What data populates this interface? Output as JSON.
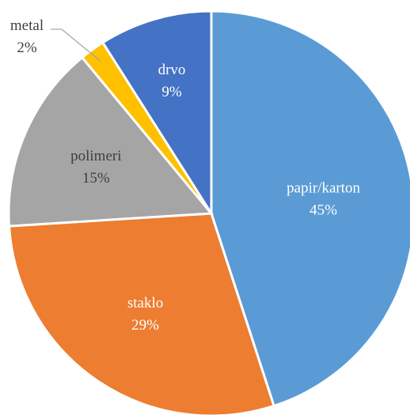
{
  "chart_data": {
    "type": "pie",
    "title": "",
    "slices": [
      {
        "label": "papir/karton",
        "value": 45,
        "value_label": "45%",
        "color": "#5b9bd5"
      },
      {
        "label": "staklo",
        "value": 29,
        "value_label": "29%",
        "color": "#ed7d31"
      },
      {
        "label": "polimeri",
        "value": 15,
        "value_label": "15%",
        "color": "#a5a5a5"
      },
      {
        "label": "metal",
        "value": 2,
        "value_label": "2%",
        "color": "#ffc000"
      },
      {
        "label": "drvo",
        "value": 9,
        "value_label": "9%",
        "color": "#4472c4"
      }
    ],
    "start_angle_deg": 0,
    "direction": "clockwise",
    "legend": "none",
    "data_labels": "category and percentage"
  }
}
